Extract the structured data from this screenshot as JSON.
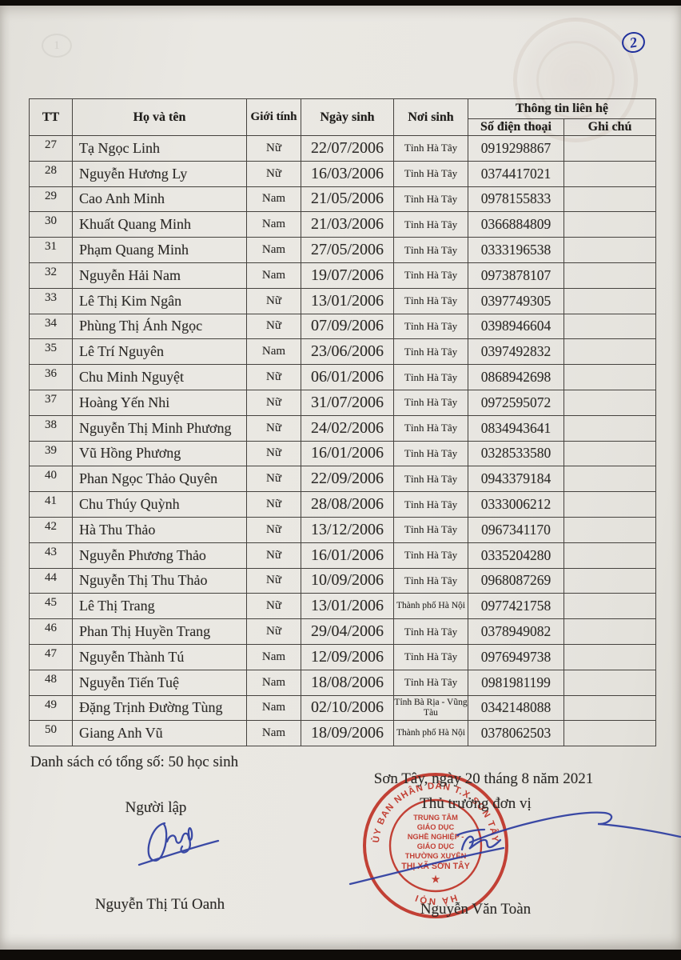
{
  "page": {
    "page_number": "2",
    "summary": "Danh sách có tổng số: 50 học sinh",
    "date_line": "Sơn Tây, ngày 20 tháng 8 năm 2021",
    "left_sign_title": "Người lập",
    "right_sign_title": "Thủ trưởng đơn vị",
    "left_sign_name": "Nguyễn Thị Tú Oanh",
    "right_sign_name": "Nguyễn Văn Toàn",
    "bleed_mark": "1"
  },
  "table": {
    "headers": {
      "tt": "TT",
      "name": "Họ và tên",
      "gender": "Giới tính",
      "dob": "Ngày sinh",
      "pob": "Nơi sinh",
      "contact": "Thông tin liên hệ",
      "phone": "Số điện thoại",
      "note": "Ghi chú"
    },
    "rows": [
      {
        "tt": "27",
        "name": "Tạ Ngọc Linh",
        "gender": "Nữ",
        "dob": "22/07/2006",
        "pob": "Tỉnh Hà Tây",
        "phone": "0919298867",
        "note": ""
      },
      {
        "tt": "28",
        "name": "Nguyễn Hương Ly",
        "gender": "Nữ",
        "dob": "16/03/2006",
        "pob": "Tỉnh Hà Tây",
        "phone": "0374417021",
        "note": ""
      },
      {
        "tt": "29",
        "name": "Cao Anh Minh",
        "gender": "Nam",
        "dob": "21/05/2006",
        "pob": "Tỉnh Hà Tây",
        "phone": "0978155833",
        "note": ""
      },
      {
        "tt": "30",
        "name": "Khuất Quang Minh",
        "gender": "Nam",
        "dob": "21/03/2006",
        "pob": "Tỉnh Hà Tây",
        "phone": "0366884809",
        "note": ""
      },
      {
        "tt": "31",
        "name": "Phạm Quang Minh",
        "gender": "Nam",
        "dob": "27/05/2006",
        "pob": "Tỉnh Hà Tây",
        "phone": "0333196538",
        "note": ""
      },
      {
        "tt": "32",
        "name": "Nguyễn Hải Nam",
        "gender": "Nam",
        "dob": "19/07/2006",
        "pob": "Tỉnh Hà Tây",
        "phone": "0973878107",
        "note": ""
      },
      {
        "tt": "33",
        "name": "Lê Thị Kim Ngân",
        "gender": "Nữ",
        "dob": "13/01/2006",
        "pob": "Tỉnh Hà Tây",
        "phone": "0397749305",
        "note": ""
      },
      {
        "tt": "34",
        "name": "Phùng Thị Ánh Ngọc",
        "gender": "Nữ",
        "dob": "07/09/2006",
        "pob": "Tỉnh Hà Tây",
        "phone": "0398946604",
        "note": ""
      },
      {
        "tt": "35",
        "name": "Lê Trí Nguyên",
        "gender": "Nam",
        "dob": "23/06/2006",
        "pob": "Tỉnh Hà Tây",
        "phone": "0397492832",
        "note": ""
      },
      {
        "tt": "36",
        "name": "Chu Minh Nguyệt",
        "gender": "Nữ",
        "dob": "06/01/2006",
        "pob": "Tỉnh Hà Tây",
        "phone": "0868942698",
        "note": ""
      },
      {
        "tt": "37",
        "name": "Hoàng Yến Nhi",
        "gender": "Nữ",
        "dob": "31/07/2006",
        "pob": "Tỉnh Hà Tây",
        "phone": "0972595072",
        "note": ""
      },
      {
        "tt": "38",
        "name": "Nguyễn Thị Minh Phương",
        "gender": "Nữ",
        "dob": "24/02/2006",
        "pob": "Tỉnh Hà Tây",
        "phone": "0834943641",
        "note": ""
      },
      {
        "tt": "39",
        "name": "Vũ Hồng Phương",
        "gender": "Nữ",
        "dob": "16/01/2006",
        "pob": "Tỉnh Hà Tây",
        "phone": "0328533580",
        "note": ""
      },
      {
        "tt": "40",
        "name": "Phan Ngọc Thảo Quyên",
        "gender": "Nữ",
        "dob": "22/09/2006",
        "pob": "Tỉnh Hà Tây",
        "phone": "0943379184",
        "note": ""
      },
      {
        "tt": "41",
        "name": "Chu Thúy Quỳnh",
        "gender": "Nữ",
        "dob": "28/08/2006",
        "pob": "Tỉnh Hà Tây",
        "phone": "0333006212",
        "note": ""
      },
      {
        "tt": "42",
        "name": "Hà Thu Thảo",
        "gender": "Nữ",
        "dob": "13/12/2006",
        "pob": "Tỉnh Hà Tây",
        "phone": "0967341170",
        "note": ""
      },
      {
        "tt": "43",
        "name": "Nguyễn Phương Thảo",
        "gender": "Nữ",
        "dob": "16/01/2006",
        "pob": "Tỉnh Hà Tây",
        "phone": "0335204280",
        "note": ""
      },
      {
        "tt": "44",
        "name": "Nguyễn Thị Thu Thảo",
        "gender": "Nữ",
        "dob": "10/09/2006",
        "pob": "Tỉnh Hà Tây",
        "phone": "0968087269",
        "note": ""
      },
      {
        "tt": "45",
        "name": "Lê Thị Trang",
        "gender": "Nữ",
        "dob": "13/01/2006",
        "pob": "Thành phố Hà Nội",
        "phone": "0977421758",
        "note": ""
      },
      {
        "tt": "46",
        "name": "Phan Thị Huyền Trang",
        "gender": "Nữ",
        "dob": "29/04/2006",
        "pob": "Tỉnh Hà Tây",
        "phone": "0378949082",
        "note": ""
      },
      {
        "tt": "47",
        "name": "Nguyễn Thành Tú",
        "gender": "Nam",
        "dob": "12/09/2006",
        "pob": "Tỉnh Hà Tây",
        "phone": "0976949738",
        "note": ""
      },
      {
        "tt": "48",
        "name": "Nguyễn Tiến Tuệ",
        "gender": "Nam",
        "dob": "18/08/2006",
        "pob": "Tỉnh Hà Tây",
        "phone": "0981981199",
        "note": ""
      },
      {
        "tt": "49",
        "name": "Đặng Trịnh Đường Tùng",
        "gender": "Nam",
        "dob": "02/10/2006",
        "pob": "Tỉnh Bà Rịa - Vũng Tàu",
        "phone": "0342148088",
        "note": ""
      },
      {
        "tt": "50",
        "name": "Giang Anh Vũ",
        "gender": "Nam",
        "dob": "18/09/2006",
        "pob": "Thành phố Hà Nội",
        "phone": "0378062503",
        "note": ""
      }
    ]
  },
  "stamp": {
    "ring_top": "ỦY BAN NHÂN DÂN T.X SƠN TÂY",
    "ring_bottom": "HÀ NỘI",
    "center_lines": [
      "TRUNG TÂM",
      "GIÁO DỤC",
      "NGHỀ NGHIỆP -",
      "GIÁO DỤC",
      "THƯỜNG XUYÊN",
      "THỊ XÃ SƠN TÂY"
    ],
    "star": "★",
    "color": "#bf3327"
  },
  "colors": {
    "paper": "#e9e7e2",
    "ink": "#2e2c29",
    "pen_blue": "#28389e",
    "stamp_red": "#bf3327"
  }
}
